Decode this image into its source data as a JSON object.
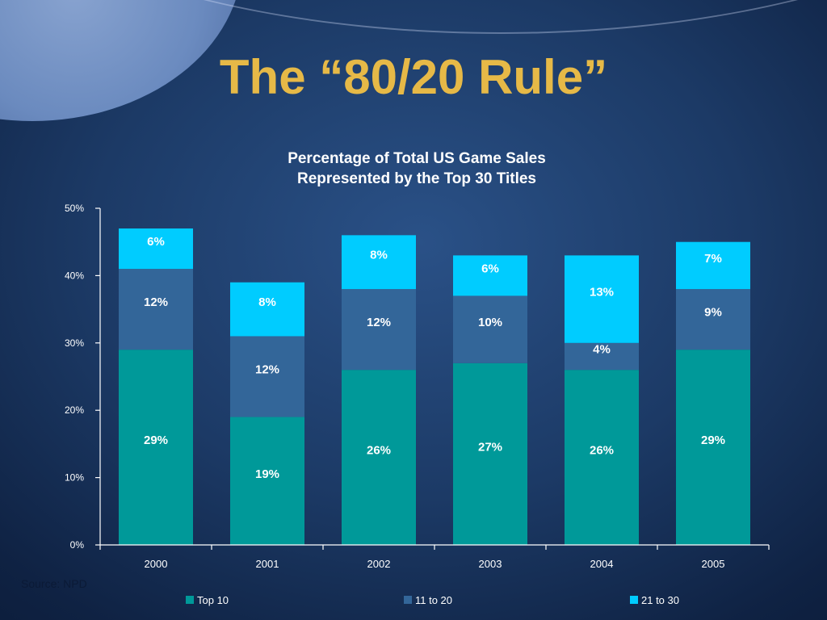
{
  "slide": {
    "title": "The “80/20 Rule”",
    "source": "Source: NPD"
  },
  "colors": {
    "background": "#1c3a66",
    "title": "#e6b947",
    "text": "#ffffff",
    "top10": "#009999",
    "rank11to20": "#336699",
    "rank21to30": "#00ccff"
  },
  "chart_data": {
    "type": "bar",
    "stacked": true,
    "title_lines": [
      "Percentage of Total US Game Sales",
      "Represented by the Top 30 Titles"
    ],
    "categories": [
      "2000",
      "2001",
      "2002",
      "2003",
      "2004",
      "2005"
    ],
    "series": [
      {
        "name": "Top 10",
        "color": "#009999",
        "values": [
          29,
          19,
          26,
          27,
          26,
          29
        ],
        "labels": [
          "29%",
          "19%",
          "26%",
          "27%",
          "26%",
          "29%"
        ]
      },
      {
        "name": "11 to 20",
        "color": "#336699",
        "values": [
          12,
          12,
          12,
          10,
          4,
          9
        ],
        "labels": [
          "12%",
          "12%",
          "12%",
          "10%",
          "4%",
          "9%"
        ]
      },
      {
        "name": "21 to 30",
        "color": "#00ccff",
        "values": [
          6,
          8,
          8,
          6,
          13,
          7
        ],
        "labels": [
          "6%",
          "8%",
          "8%",
          "6%",
          "13%",
          "7%"
        ]
      }
    ],
    "ylim": [
      0,
      50
    ],
    "yticks": [
      "0%",
      "10%",
      "20%",
      "30%",
      "40%",
      "50%"
    ],
    "legend_position": "bottom",
    "grid": false
  }
}
